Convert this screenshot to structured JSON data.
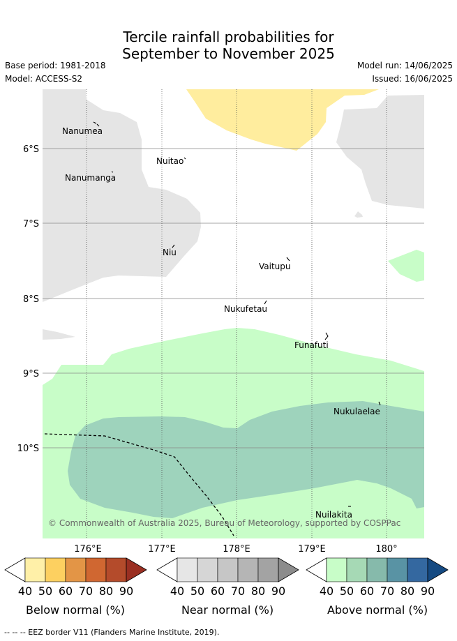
{
  "title": {
    "line1": "Tercile rainfall probabilities for",
    "line2": "September to November 2025"
  },
  "meta": {
    "base_period": "Base period: 1981-2018",
    "model": "Model: ACCESS-S2",
    "model_run": "Model run: 14/06/2025",
    "issued": "Issued: 16/06/2025"
  },
  "axes": {
    "lat_ticks": [
      "6°S",
      "7°S",
      "8°S",
      "9°S",
      "10°S"
    ],
    "lon_ticks": [
      "176°E",
      "177°E",
      "178°E",
      "179°E",
      "180°"
    ]
  },
  "places": [
    "Nanumea",
    "Nuitao",
    "Nanumanga",
    "Niu",
    "Vaitupu",
    "Nukufetau",
    "Funafuti",
    "Nukulaelae",
    "Nuilakita"
  ],
  "copyright": "© Commonwealth of Australia 2025, Bureau of Meteorology, supported by COSPPac",
  "legend": {
    "ticks": [
      "40",
      "50",
      "60",
      "70",
      "80",
      "90"
    ],
    "below": {
      "label": "Below normal (%)",
      "colors": [
        "#ffffff",
        "#fff0a8",
        "#fdd060",
        "#e39546",
        "#d06731",
        "#b44b2b",
        "#9a2f22"
      ]
    },
    "near": {
      "label": "Near normal (%)",
      "colors": [
        "#ffffff",
        "#e6e6e6",
        "#d6d6d6",
        "#c6c6c6",
        "#b5b5b5",
        "#a3a3a3",
        "#8c8c8c"
      ]
    },
    "above": {
      "label": "Above normal (%)",
      "colors": [
        "#ffffff",
        "#c8fdc8",
        "#a6d9b5",
        "#86baab",
        "#5993a4",
        "#3468a0",
        "#154a82"
      ]
    }
  },
  "map_colors": {
    "near_normal_land_region": "#e5e5e5",
    "below_region": "#ffed9e",
    "above_50": "#c8fdc8",
    "above_60": "#9ed3bc"
  },
  "footer": "--  --  -- EEZ border V11 (Flanders Marine Institute, 2019)."
}
